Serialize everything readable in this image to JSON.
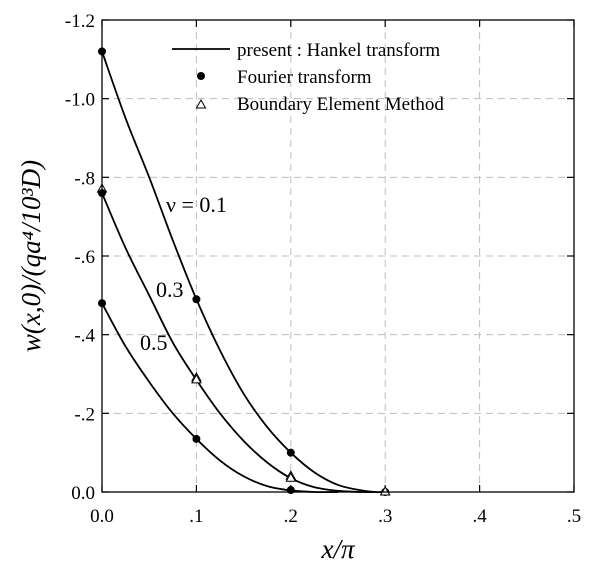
{
  "chart_data": {
    "type": "line",
    "xlabel": "x/π",
    "ylabel": "w(x,0)/(qa⁴/10³D)",
    "xlim": [
      0.0,
      0.5
    ],
    "ylim": [
      0.0,
      -1.2
    ],
    "x_ticks": [
      0.0,
      0.1,
      0.2,
      0.3,
      0.4,
      0.5
    ],
    "x_tick_labels": [
      "0.0",
      ".1",
      ".2",
      ".3",
      ".4",
      ".5"
    ],
    "y_ticks": [
      0.0,
      -0.2,
      -0.4,
      -0.6,
      -0.8,
      -1.0,
      -1.2
    ],
    "y_tick_labels": [
      "0.0",
      "-.2",
      "-.4",
      "-.6",
      "-.8",
      "-1.0",
      "-1.2"
    ],
    "grid": true,
    "legend": {
      "placement": "top-right",
      "entries": [
        {
          "label": "present : Hankel transform",
          "marker": "line"
        },
        {
          "label": "Fourier transform",
          "marker": "filled-circle"
        },
        {
          "label": "Boundary Element Method",
          "marker": "open-triangle"
        }
      ]
    },
    "annotations": [
      {
        "text": "ν = 0.1",
        "series": "nu_0.1"
      },
      {
        "text": "0.3",
        "series": "nu_0.3"
      },
      {
        "text": "0.5",
        "series": "nu_0.5"
      }
    ],
    "series": [
      {
        "id": "nu_0.1",
        "line": {
          "x": [
            0.0,
            0.025,
            0.05,
            0.075,
            0.1,
            0.125,
            0.15,
            0.175,
            0.2,
            0.225,
            0.25,
            0.275,
            0.29,
            0.3
          ],
          "y": [
            -1.12,
            -0.95,
            -0.8,
            -0.64,
            -0.49,
            -0.36,
            -0.25,
            -0.165,
            -0.1,
            -0.05,
            -0.018,
            -0.004,
            0.0,
            0.0
          ]
        },
        "fourier": {
          "x": [
            0.0,
            0.1,
            0.2,
            0.3
          ],
          "y": [
            -1.12,
            -0.49,
            -0.1,
            0.0
          ]
        },
        "bem": {
          "x": [
            0.0,
            0.1,
            0.2,
            0.3
          ],
          "y": [
            -0.77,
            -0.29,
            -0.04,
            0.0
          ]
        }
      },
      {
        "id": "nu_0.3",
        "line": {
          "x": [
            0.0,
            0.025,
            0.05,
            0.075,
            0.1,
            0.125,
            0.15,
            0.175,
            0.2,
            0.225,
            0.25,
            0.275,
            0.29
          ],
          "y": [
            -0.76,
            -0.62,
            -0.5,
            -0.38,
            -0.285,
            -0.2,
            -0.13,
            -0.075,
            -0.035,
            -0.012,
            -0.003,
            0.0,
            0.0
          ]
        }
      },
      {
        "id": "nu_0.5",
        "line": {
          "x": [
            0.0,
            0.025,
            0.05,
            0.075,
            0.1,
            0.125,
            0.15,
            0.175,
            0.2,
            0.225,
            0.25
          ],
          "y": [
            -0.48,
            -0.37,
            -0.28,
            -0.2,
            -0.135,
            -0.08,
            -0.04,
            -0.015,
            -0.004,
            0.0,
            0.0
          ]
        },
        "fourier": {
          "x": [
            0.0,
            0.1,
            0.2
          ],
          "y": [
            -0.48,
            -0.135,
            -0.005
          ]
        }
      }
    ],
    "extra_points": {
      "fourier": {
        "x": [
          0.0
        ],
        "y": [
          -0.76
        ]
      },
      "bem": {
        "x": [
          0.1,
          0.2,
          0.3
        ],
        "y": [
          -0.285,
          -0.035,
          0.0
        ]
      }
    }
  }
}
